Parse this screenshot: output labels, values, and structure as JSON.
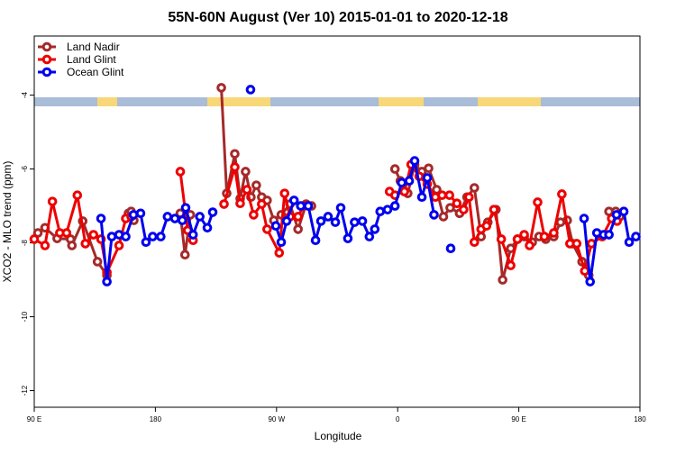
{
  "chart_data": {
    "type": "line",
    "title": "55N-60N August (Ver 10)   2015-01-01 to 2020-12-18",
    "xlabel": "Longitude",
    "ylabel": "XCO2 - MLO trend (ppm)",
    "xlim": [
      90,
      540
    ],
    "ylim": [
      -12.45,
      -2.4
    ],
    "xticks": [
      {
        "value": 90,
        "label": "90 E"
      },
      180,
      {
        "value": 270,
        "label": "90 W"
      },
      {
        "value": 360,
        "label": "0"
      },
      {
        "value": 450,
        "label": "90 E"
      },
      {
        "value": 540,
        "label": "180"
      }
    ],
    "yticks": [
      -4,
      -6,
      -8,
      -10,
      -12
    ],
    "legend": "top-left",
    "series": [
      {
        "name": "Land Nadir",
        "color": "#a52a2a",
        "x": [
          92.7,
          98,
          107,
          117,
          118,
          126,
          137,
          144,
          null,
          160,
          162,
          164,
          null,
          198.5,
          202,
          206,
          null,
          229,
          233,
          239,
          243,
          247,
          251,
          255,
          259,
          263,
          268,
          273.5,
          280,
          286,
          292,
          296,
          null,
          358,
          362,
          367.5,
          372.6,
          378,
          383,
          389,
          394,
          399,
          406,
          411.5,
          417,
          422,
          427,
          433,
          438,
          444,
          449,
          454,
          460,
          465,
          470,
          476,
          481,
          486,
          490,
          497,
          502,
          null,
          517,
          522,
          525
        ],
        "values": [
          -7.73,
          -7.59,
          -7.88,
          -7.9,
          -8.07,
          -7.41,
          -8.51,
          -8.88,
          null,
          -7.2,
          -7.15,
          -7.39,
          null,
          -7.2,
          -8.32,
          -7.24,
          null,
          -3.8,
          -6.66,
          -5.59,
          -6.8,
          -6.07,
          -6.76,
          -6.44,
          -6.76,
          -6.85,
          -7.39,
          -7.24,
          -6.95,
          -7.63,
          -6.95,
          -7.0,
          null,
          -6.0,
          -6.32,
          -6.66,
          -5.88,
          -6.07,
          -5.98,
          -6.56,
          -7.29,
          -7.05,
          -7.2,
          -6.76,
          -6.51,
          -7.83,
          -7.44,
          -7.1,
          -9.0,
          -8.15,
          -7.9,
          -7.83,
          -7.98,
          -7.83,
          -7.9,
          -7.83,
          -7.44,
          -7.39,
          -8.02,
          -8.51,
          -8.88,
          null,
          -7.15,
          -7.15,
          -7.29
        ]
      },
      {
        "name": "Land Glint",
        "color": "#ee0000",
        "x": [
          90,
          98,
          103.5,
          109,
          114,
          122,
          128,
          134,
          139.6,
          144,
          153,
          158,
          162,
          null,
          198.5,
          204,
          208,
          null,
          231,
          239,
          243,
          248,
          253,
          259,
          263,
          272,
          276,
          280,
          286,
          290,
          null,
          354,
          358,
          365,
          370,
          376,
          382,
          388,
          393,
          398.5,
          404,
          409,
          413,
          417,
          422,
          426,
          431.5,
          437,
          444,
          449,
          454,
          458,
          464,
          469,
          476,
          482,
          488,
          493,
          499,
          504,
          512,
          519,
          523
        ],
        "values": [
          -7.9,
          -8.07,
          -6.88,
          -7.73,
          -7.73,
          -6.71,
          -8.02,
          -7.78,
          -7.9,
          -8.8,
          -8.07,
          -7.34,
          -7.29,
          null,
          -6.07,
          -7.66,
          -7.93,
          null,
          -6.95,
          -5.95,
          -6.93,
          -6.56,
          -7.24,
          -6.95,
          -7.63,
          -8.27,
          -6.66,
          -7.29,
          -7.29,
          -7.0,
          null,
          -6.61,
          -6.71,
          -6.61,
          -5.88,
          -6.2,
          -6.41,
          -6.76,
          -6.71,
          -6.71,
          -6.93,
          -7.1,
          -6.76,
          -7.98,
          -7.63,
          -7.54,
          -7.1,
          -7.9,
          -8.61,
          -7.9,
          -7.78,
          -8.07,
          -6.9,
          -7.83,
          -7.73,
          -6.68,
          -8.02,
          -8.02,
          -8.76,
          -8.02,
          -7.83,
          -7.34,
          -7.41
        ]
      },
      {
        "name": "Ocean Glint",
        "color": "#0000ee",
        "x": [
          139.6,
          144,
          147.6,
          153,
          158,
          163.7,
          169,
          173,
          178,
          184,
          189,
          194.5,
          200,
          202.5,
          208,
          213,
          218.6,
          222.6,
          null,
          250.7,
          null,
          269.5,
          273.5,
          277.5,
          283,
          288,
          293.6,
          299,
          303,
          308.3,
          313.7,
          317.7,
          323,
          328,
          333.8,
          339,
          343,
          347,
          352.5,
          358,
          363,
          368.6,
          372.6,
          378,
          382,
          387,
          null,
          399.4,
          null,
          498.5,
          503,
          508,
          513,
          517,
          522.6,
          528,
          532,
          537
        ],
        "values": [
          -7.34,
          -9.05,
          -7.83,
          -7.78,
          -7.83,
          -7.24,
          -7.2,
          -7.98,
          -7.83,
          -7.83,
          -7.29,
          -7.34,
          -7.39,
          -7.05,
          -7.78,
          -7.29,
          -7.59,
          -7.17,
          null,
          -3.85,
          null,
          -7.54,
          -7.98,
          -7.41,
          -6.85,
          -7.0,
          -7.0,
          -7.93,
          -7.41,
          -7.29,
          -7.44,
          -7.05,
          -7.88,
          -7.44,
          -7.41,
          -7.83,
          -7.63,
          -7.15,
          -7.1,
          -7.0,
          -6.37,
          -6.32,
          -5.78,
          -6.76,
          -6.24,
          -7.24,
          null,
          -8.15,
          null,
          -7.34,
          -9.05,
          -7.73,
          -7.78,
          -7.78,
          -7.24,
          -7.15,
          -7.98,
          -7.83
        ]
      }
    ]
  }
}
